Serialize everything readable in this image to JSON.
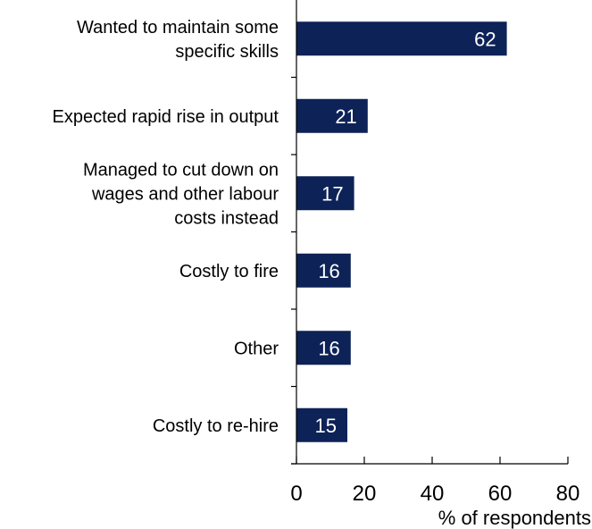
{
  "chart_data": {
    "type": "bar",
    "orientation": "horizontal",
    "categories": [
      [
        "Wanted to maintain some",
        "specific skills"
      ],
      [
        "Expected rapid rise in output"
      ],
      [
        "Managed to cut down on",
        "wages and other labour",
        "costs instead"
      ],
      [
        "Costly to fire"
      ],
      [
        "Other"
      ],
      [
        "Costly to re-hire"
      ]
    ],
    "values": [
      62,
      21,
      17,
      16,
      16,
      15
    ],
    "data_labels": [
      "62",
      "21",
      "17",
      "16",
      "16",
      "15"
    ],
    "xlabel": "% of respondents",
    "xlim": [
      0,
      80
    ],
    "xticks": [
      0,
      20,
      40,
      60,
      80
    ],
    "bar_color": "#0d2257",
    "label_color": "#ffffff",
    "grid": false,
    "legend": "none"
  }
}
